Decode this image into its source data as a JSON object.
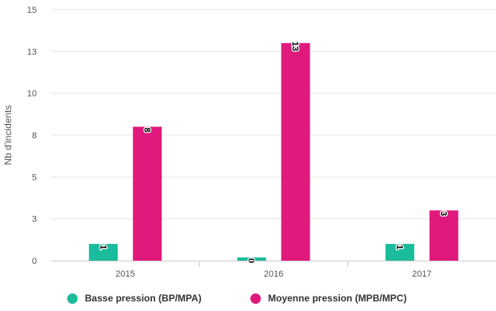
{
  "chart_data": {
    "type": "bar",
    "categories": [
      "2015",
      "2016",
      "2017"
    ],
    "series": [
      {
        "name": "Basse pression (BP/MPA)",
        "values": [
          1,
          0,
          1
        ],
        "color": "#1abc9c"
      },
      {
        "name": "Moyenne pression (MPB/MPC)",
        "values": [
          8,
          13,
          3
        ],
        "color": "#e0197d"
      }
    ],
    "ylabel": "Nb d'incidents",
    "ylim": [
      0,
      15
    ],
    "yticks": [
      0,
      3,
      5,
      8,
      10,
      13,
      15
    ],
    "grid": true,
    "legend": "bottom"
  }
}
